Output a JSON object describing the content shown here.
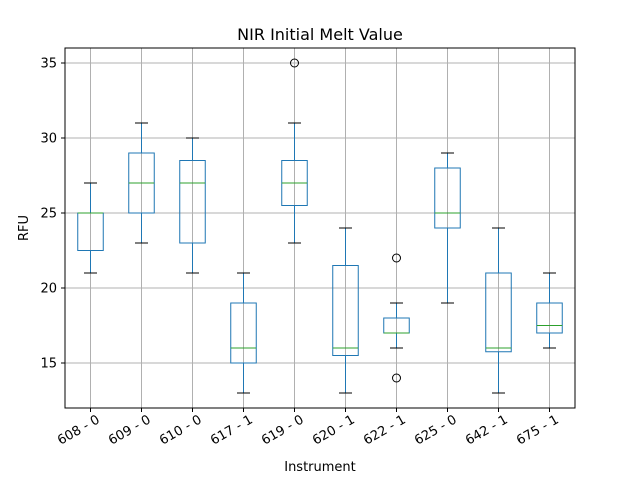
{
  "chart_data": {
    "type": "box",
    "title": "NIR Initial Melt Value",
    "xlabel": "Instrument",
    "ylabel": "RFU",
    "ylim": [
      12,
      36
    ],
    "yticks": [
      15,
      20,
      25,
      30,
      35
    ],
    "grid": true,
    "categories": [
      "608 - 0",
      "609 - 0",
      "610 - 0",
      "617 - 1",
      "619 - 0",
      "620 - 1",
      "622 - 1",
      "625 - 0",
      "642 - 1",
      "675 - 1"
    ],
    "boxes": [
      {
        "whisker_low": 21,
        "q1": 22.5,
        "median": 25,
        "q3": 25,
        "whisker_high": 27,
        "outliers": []
      },
      {
        "whisker_low": 23,
        "q1": 25,
        "median": 27,
        "q3": 29,
        "whisker_high": 31,
        "outliers": []
      },
      {
        "whisker_low": 21,
        "q1": 23,
        "median": 27,
        "q3": 28.5,
        "whisker_high": 30,
        "outliers": []
      },
      {
        "whisker_low": 13,
        "q1": 15,
        "median": 16,
        "q3": 19,
        "whisker_high": 21,
        "outliers": []
      },
      {
        "whisker_low": 23,
        "q1": 25.5,
        "median": 27,
        "q3": 28.5,
        "whisker_high": 31,
        "outliers": [
          35
        ]
      },
      {
        "whisker_low": 13,
        "q1": 15.5,
        "median": 16,
        "q3": 21.5,
        "whisker_high": 24,
        "outliers": []
      },
      {
        "whisker_low": 16,
        "q1": 17,
        "median": 17,
        "q3": 18,
        "whisker_high": 19,
        "outliers": [
          22,
          14
        ]
      },
      {
        "whisker_low": 19,
        "q1": 24,
        "median": 25,
        "q3": 28,
        "whisker_high": 29,
        "outliers": []
      },
      {
        "whisker_low": 13,
        "q1": 15.75,
        "median": 16,
        "q3": 21,
        "whisker_high": 24,
        "outliers": []
      },
      {
        "whisker_low": 16,
        "q1": 17,
        "median": 17.5,
        "q3": 19,
        "whisker_high": 21,
        "outliers": []
      }
    ],
    "colors": {
      "box": "#1f77b4",
      "median": "#2ca02c",
      "whisker_cap": "#000000",
      "grid": "#b0b0b0",
      "outlier": "#000000"
    }
  }
}
